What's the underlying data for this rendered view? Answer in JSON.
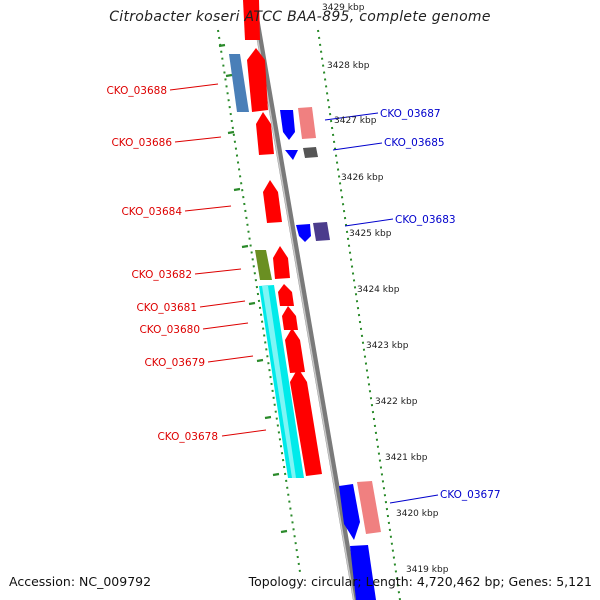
{
  "title": "Citrobacter koseri ATCC BAA-895, complete genome",
  "accession": "Accession: NC_009792",
  "summary": "Topology: circular; Length: 4,720,462 bp; Genes: 5,121",
  "colors": {
    "forward_label": "#dd0000",
    "reverse_label": "#0000cc",
    "forward_cds": "#ff0000",
    "reverse_cds": "#0000ff",
    "backbone": "#8a8a8a",
    "tick_dots": "#2a8a2a"
  },
  "ticks": [
    {
      "label": "3429 kbp"
    },
    {
      "label": "3428 kbp"
    },
    {
      "label": "3427 kbp"
    },
    {
      "label": "3426 kbp"
    },
    {
      "label": "3425 kbp"
    },
    {
      "label": "3424 kbp"
    },
    {
      "label": "3423 kbp"
    },
    {
      "label": "3422 kbp"
    },
    {
      "label": "3421 kbp"
    },
    {
      "label": "3420 kbp"
    },
    {
      "label": "3419 kbp"
    }
  ],
  "forward_genes": [
    {
      "name": "CKO_03688"
    },
    {
      "name": "CKO_03686"
    },
    {
      "name": "CKO_03684"
    },
    {
      "name": "CKO_03682"
    },
    {
      "name": "CKO_03681"
    },
    {
      "name": "CKO_03680"
    },
    {
      "name": "CKO_03679"
    },
    {
      "name": "CKO_03678"
    }
  ],
  "reverse_genes": [
    {
      "name": "CKO_03687"
    },
    {
      "name": "CKO_03685"
    },
    {
      "name": "CKO_03683"
    },
    {
      "name": "CKO_03677"
    }
  ]
}
